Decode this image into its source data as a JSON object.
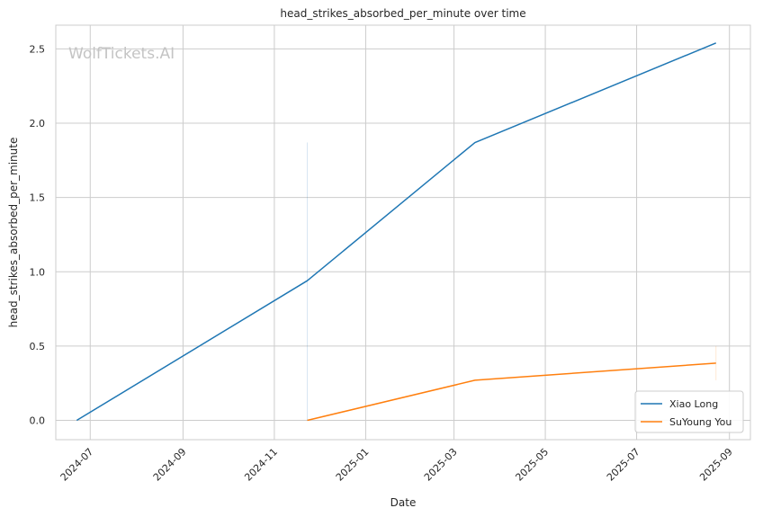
{
  "chart_data": {
    "type": "line",
    "title": "head_strikes_absorbed_per_minute over time",
    "xlabel": "Date",
    "ylabel": "head_strikes_absorbed_per_minute",
    "watermark": "WolfTickets.AI",
    "x_ticks": [
      "2024-07",
      "2024-09",
      "2024-11",
      "2025-01",
      "2025-03",
      "2025-05",
      "2025-07",
      "2025-09"
    ],
    "y_ticks": [
      "0.0",
      "0.5",
      "1.0",
      "1.5",
      "2.0",
      "2.5"
    ],
    "xlim": [
      "2024-06-08",
      "2025-09-15"
    ],
    "ylim": [
      -0.13,
      2.66
    ],
    "grid": true,
    "legend_position": "lower-right",
    "series": [
      {
        "name": "Xiao Long",
        "color": "#1f77b4",
        "points": [
          {
            "x": "2024-06-22",
            "y": 0.0
          },
          {
            "x": "2024-11-23",
            "y": 0.94
          },
          {
            "x": "2025-03-15",
            "y": 1.87
          },
          {
            "x": "2025-08-23",
            "y": 2.54
          }
        ]
      },
      {
        "name": "SuYoung You",
        "color": "#ff7f0e",
        "points": [
          {
            "x": "2024-11-23",
            "y": 0.0
          },
          {
            "x": "2025-03-15",
            "y": 0.27
          },
          {
            "x": "2025-08-23",
            "y": 0.385
          }
        ]
      }
    ]
  }
}
